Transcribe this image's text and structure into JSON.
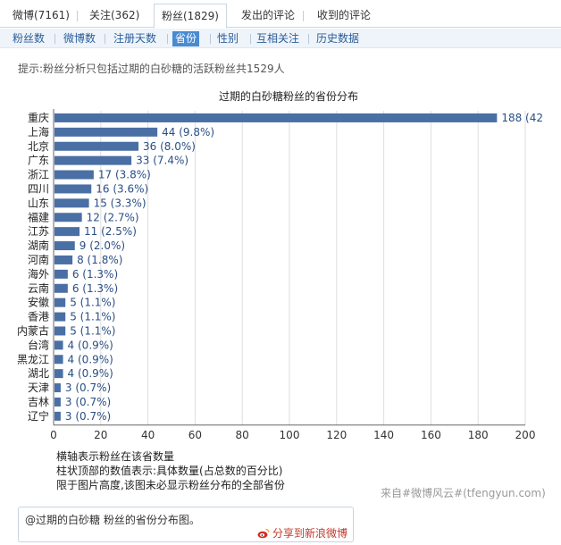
{
  "tabs": [
    {
      "label": "微博(7161)",
      "active": false
    },
    {
      "label": "关注(362)",
      "active": false
    },
    {
      "label": "粉丝(1829)",
      "active": true
    },
    {
      "label": "发出的评论",
      "active": false
    },
    {
      "label": "收到的评论",
      "active": false
    }
  ],
  "subnav": [
    {
      "label": "粉丝数",
      "active": false
    },
    {
      "label": "微博数",
      "active": false
    },
    {
      "label": "注册天数",
      "active": false
    },
    {
      "label": "省份",
      "active": true
    },
    {
      "label": "性别",
      "active": false
    },
    {
      "label": "互相关注",
      "active": false
    },
    {
      "label": "历史数据",
      "active": false
    }
  ],
  "hint": "提示:粉丝分析只包括过期的白砂糖的活跃粉丝共1529人",
  "chart_data": {
    "type": "bar",
    "orientation": "horizontal",
    "title": "过期的白砂糖粉丝的省份分布",
    "categories": [
      "重庆",
      "上海",
      "北京",
      "广东",
      "浙江",
      "四川",
      "山东",
      "福建",
      "江苏",
      "湖南",
      "河南",
      "海外",
      "云南",
      "安徽",
      "香港",
      "内蒙古",
      "台湾",
      "黑龙江",
      "湖北",
      "天津",
      "吉林",
      "辽宁"
    ],
    "values": [
      188,
      44,
      36,
      33,
      17,
      16,
      15,
      12,
      11,
      9,
      8,
      6,
      6,
      5,
      5,
      5,
      4,
      4,
      4,
      3,
      3,
      3
    ],
    "labels": [
      "188 (42",
      "44 (9.8%)",
      "36 (8.0%)",
      "33 (7.4%)",
      "17 (3.8%)",
      "16 (3.6%)",
      "15 (3.3%)",
      "12 (2.7%)",
      "11 (2.5%)",
      "9 (2.0%)",
      "8 (1.8%)",
      "6 (1.3%)",
      "6 (1.3%)",
      "5 (1.1%)",
      "5 (1.1%)",
      "5 (1.1%)",
      "4 (0.9%)",
      "4 (0.9%)",
      "4 (0.9%)",
      "3 (0.7%)",
      "3 (0.7%)",
      "3 (0.7%)"
    ],
    "xlim": [
      0,
      200
    ],
    "xticks": [
      0,
      20,
      40,
      60,
      80,
      100,
      120,
      140,
      160,
      180,
      200
    ],
    "grid": true,
    "bar_color": "#4a6fa5"
  },
  "notes": [
    "横轴表示粉丝在该省数量",
    "柱状顶部的数值表示:具体数量(占总数的百分比)",
    "限于图片高度,该图未必显示粉丝分布的全部省份"
  ],
  "source": "来自#微博风云#(tfengyun.com)",
  "share": {
    "text": "@过期的白砂糖 粉丝的省份分布图。",
    "link": "分享到新浪微博",
    "icon": "weibo-icon"
  },
  "colors": {
    "accent": "#4a8ad0",
    "link": "#2a5d99",
    "share_link": "#c0392b"
  }
}
